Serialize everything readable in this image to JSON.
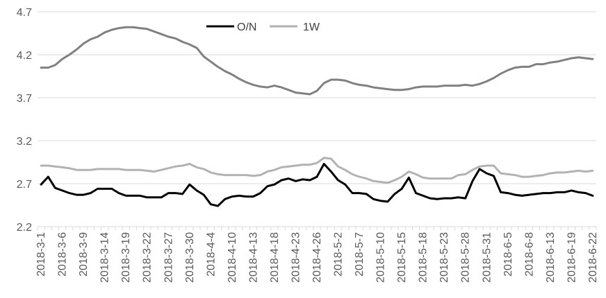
{
  "chart_data": {
    "type": "line",
    "title": "",
    "xlabel": "",
    "ylabel": "",
    "ylim": [
      2.2,
      4.7
    ],
    "y_ticks": [
      "2.2",
      "2.7",
      "3.2",
      "3.7",
      "4.2",
      "4.7"
    ],
    "grid": "horizontal",
    "legend_position": "top-center",
    "x_tick_labels": [
      "2018-3-1",
      "2018-3-6",
      "2018-3-9",
      "2018-3-14",
      "2018-3-19",
      "2018-3-22",
      "2018-3-27",
      "2018-3-30",
      "2018-4-4",
      "2018-4-10",
      "2018-4-13",
      "2018-4-18",
      "2018-4-23",
      "2018-4-26",
      "2018-5-2",
      "2018-5-7",
      "2018-5-10",
      "2018-5-15",
      "2018-5-18",
      "2018-5-23",
      "2018-5-28",
      "2018-5-31",
      "2018-6-5",
      "2018-6-8",
      "2018-6-13",
      "2018-6-19",
      "2018-6-22"
    ],
    "x_tick_every": 3,
    "series": [
      {
        "name": "O/N",
        "color": "#000000",
        "values": [
          2.69,
          2.78,
          2.65,
          2.62,
          2.59,
          2.57,
          2.57,
          2.59,
          2.64,
          2.64,
          2.64,
          2.59,
          2.56,
          2.56,
          2.56,
          2.54,
          2.54,
          2.54,
          2.59,
          2.59,
          2.58,
          2.69,
          2.62,
          2.57,
          2.46,
          2.44,
          2.52,
          2.55,
          2.56,
          2.55,
          2.55,
          2.59,
          2.67,
          2.69,
          2.74,
          2.76,
          2.73,
          2.75,
          2.74,
          2.78,
          2.93,
          2.84,
          2.74,
          2.69,
          2.59,
          2.59,
          2.58,
          2.52,
          2.5,
          2.49,
          2.58,
          2.64,
          2.77,
          2.59,
          2.56,
          2.53,
          2.52,
          2.53,
          2.53,
          2.54,
          2.53,
          2.73,
          2.87,
          2.82,
          2.79,
          2.6,
          2.59,
          2.57,
          2.56,
          2.57,
          2.58,
          2.59,
          2.59,
          2.6,
          2.6,
          2.62,
          2.6,
          2.59,
          2.56
        ]
      },
      {
        "name": "1W",
        "color": "#b2b2b2",
        "values": [
          2.91,
          2.91,
          2.9,
          2.89,
          2.88,
          2.86,
          2.86,
          2.86,
          2.87,
          2.87,
          2.87,
          2.87,
          2.86,
          2.86,
          2.86,
          2.85,
          2.84,
          2.86,
          2.88,
          2.9,
          2.91,
          2.93,
          2.89,
          2.87,
          2.83,
          2.81,
          2.8,
          2.8,
          2.8,
          2.8,
          2.79,
          2.8,
          2.84,
          2.86,
          2.89,
          2.9,
          2.91,
          2.92,
          2.92,
          2.94,
          3.0,
          2.99,
          2.9,
          2.86,
          2.81,
          2.78,
          2.76,
          2.73,
          2.72,
          2.71,
          2.74,
          2.78,
          2.84,
          2.81,
          2.77,
          2.76,
          2.76,
          2.76,
          2.76,
          2.8,
          2.81,
          2.86,
          2.9,
          2.91,
          2.91,
          2.82,
          2.81,
          2.8,
          2.78,
          2.78,
          2.79,
          2.8,
          2.82,
          2.83,
          2.83,
          2.84,
          2.85,
          2.84,
          2.85
        ]
      },
      {
        "name": "",
        "color": "#808080",
        "values": [
          4.05,
          4.05,
          4.08,
          4.15,
          4.2,
          4.26,
          4.33,
          4.38,
          4.41,
          4.46,
          4.49,
          4.51,
          4.52,
          4.52,
          4.51,
          4.5,
          4.47,
          4.44,
          4.41,
          4.39,
          4.35,
          4.32,
          4.28,
          4.18,
          4.12,
          4.06,
          4.01,
          3.97,
          3.92,
          3.88,
          3.85,
          3.83,
          3.82,
          3.84,
          3.82,
          3.79,
          3.76,
          3.75,
          3.74,
          3.78,
          3.87,
          3.91,
          3.91,
          3.9,
          3.87,
          3.85,
          3.84,
          3.82,
          3.81,
          3.8,
          3.79,
          3.79,
          3.8,
          3.82,
          3.83,
          3.83,
          3.83,
          3.84,
          3.84,
          3.84,
          3.85,
          3.84,
          3.86,
          3.89,
          3.93,
          3.98,
          4.02,
          4.05,
          4.06,
          4.06,
          4.09,
          4.09,
          4.11,
          4.12,
          4.14,
          4.16,
          4.17,
          4.16,
          4.15
        ]
      }
    ]
  }
}
